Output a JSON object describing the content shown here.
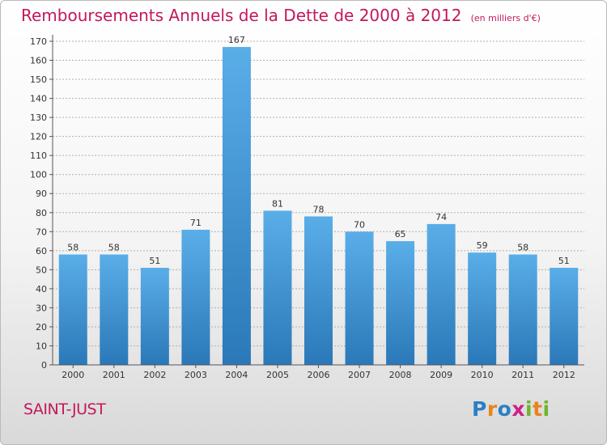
{
  "header": {
    "title": "Remboursements Annuels de la Dette de 2000 à 2012",
    "unit": "(en milliers d'€)"
  },
  "footer": {
    "commune": "SAINT-JUST",
    "logo": "Proxiti"
  },
  "colors": {
    "title": "#c2185b",
    "bar_top": "#5aaee8",
    "bar_bottom": "#2a78b8",
    "grid": "#b0b0b0"
  },
  "chart_data": {
    "type": "bar",
    "title": "Remboursements Annuels de la Dette de 2000 à 2012",
    "xlabel": "",
    "ylabel": "",
    "categories": [
      "2000",
      "2001",
      "2002",
      "2003",
      "2004",
      "2005",
      "2006",
      "2007",
      "2008",
      "2009",
      "2010",
      "2011",
      "2012"
    ],
    "values": [
      58,
      58,
      51,
      71,
      167,
      81,
      78,
      70,
      65,
      74,
      59,
      58,
      51
    ],
    "ylim": [
      0,
      170
    ],
    "ytick_step": 10,
    "grid": true,
    "data_labels": true
  }
}
